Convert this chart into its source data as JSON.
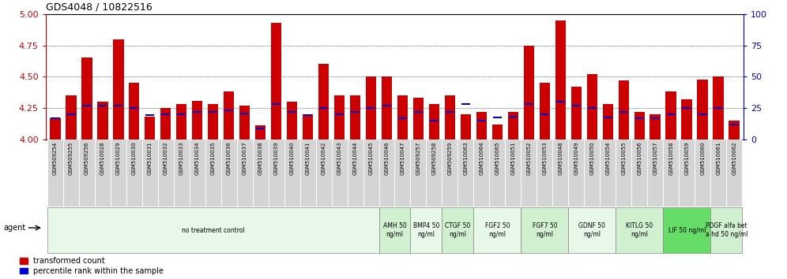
{
  "title": "GDS4048 / 10822516",
  "samples": [
    "GSM509254",
    "GSM509255",
    "GSM509256",
    "GSM510028",
    "GSM510029",
    "GSM510030",
    "GSM510031",
    "GSM510032",
    "GSM510033",
    "GSM510034",
    "GSM510035",
    "GSM510036",
    "GSM510037",
    "GSM510038",
    "GSM510039",
    "GSM510040",
    "GSM510041",
    "GSM510042",
    "GSM510043",
    "GSM510044",
    "GSM510045",
    "GSM510046",
    "GSM510047",
    "GSM509257",
    "GSM509258",
    "GSM509259",
    "GSM510063",
    "GSM510064",
    "GSM510065",
    "GSM510051",
    "GSM510052",
    "GSM510053",
    "GSM510048",
    "GSM510049",
    "GSM510050",
    "GSM510054",
    "GSM510055",
    "GSM510056",
    "GSM510057",
    "GSM510058",
    "GSM510059",
    "GSM510060",
    "GSM510061",
    "GSM510062"
  ],
  "transformed_counts": [
    4.17,
    4.35,
    4.65,
    4.3,
    4.8,
    4.45,
    4.18,
    4.25,
    4.28,
    4.31,
    4.28,
    4.38,
    4.27,
    4.11,
    4.93,
    4.3,
    4.2,
    4.6,
    4.35,
    4.35,
    4.5,
    4.5,
    4.35,
    4.33,
    4.28,
    4.35,
    4.2,
    4.22,
    4.12,
    4.22,
    4.75,
    4.45,
    4.95,
    4.42,
    4.52,
    4.28,
    4.47,
    4.22,
    4.2,
    4.38,
    4.32,
    4.48,
    4.5,
    4.15
  ],
  "percentile_fractions": [
    0.17,
    0.2,
    0.27,
    0.27,
    0.27,
    0.25,
    0.195,
    0.2,
    0.2,
    0.22,
    0.22,
    0.23,
    0.21,
    0.085,
    0.28,
    0.22,
    0.195,
    0.25,
    0.2,
    0.22,
    0.25,
    0.27,
    0.17,
    0.22,
    0.15,
    0.22,
    0.28,
    0.15,
    0.175,
    0.18,
    0.28,
    0.2,
    0.3,
    0.27,
    0.25,
    0.175,
    0.22,
    0.17,
    0.17,
    0.2,
    0.25,
    0.2,
    0.25,
    0.12
  ],
  "groups": [
    {
      "label": "no treatment control",
      "start": 0,
      "end": 21,
      "bg": "#e8f8e8"
    },
    {
      "label": "AMH 50\nng/ml",
      "start": 21,
      "end": 23,
      "bg": "#d0f0d0"
    },
    {
      "label": "BMP4 50\nng/ml",
      "start": 23,
      "end": 25,
      "bg": "#e8f8e8"
    },
    {
      "label": "CTGF 50\nng/ml",
      "start": 25,
      "end": 27,
      "bg": "#d0f0d0"
    },
    {
      "label": "FGF2 50\nng/ml",
      "start": 27,
      "end": 30,
      "bg": "#e8f8e8"
    },
    {
      "label": "FGF7 50\nng/ml",
      "start": 30,
      "end": 33,
      "bg": "#d0f0d0"
    },
    {
      "label": "GDNF 50\nng/ml",
      "start": 33,
      "end": 36,
      "bg": "#e8f8e8"
    },
    {
      "label": "KITLG 50\nng/ml",
      "start": 36,
      "end": 39,
      "bg": "#d0f0d0"
    },
    {
      "label": "LIF 50 ng/ml",
      "start": 39,
      "end": 42,
      "bg": "#66dd66"
    },
    {
      "label": "PDGF alfa bet\na hd 50 ng/ml",
      "start": 42,
      "end": 44,
      "bg": "#d0f0d0"
    }
  ],
  "ymin": 4.0,
  "ymax": 5.0,
  "yticks_left": [
    4.0,
    4.25,
    4.5,
    4.75,
    5.0
  ],
  "yticks_right": [
    0,
    25,
    50,
    75,
    100
  ],
  "bar_color": "#cc0000",
  "blue_color": "#0000cc",
  "sample_bg": "#d4d4d4",
  "sample_edge": "#aaaaaa",
  "plot_bg": "#ffffff"
}
